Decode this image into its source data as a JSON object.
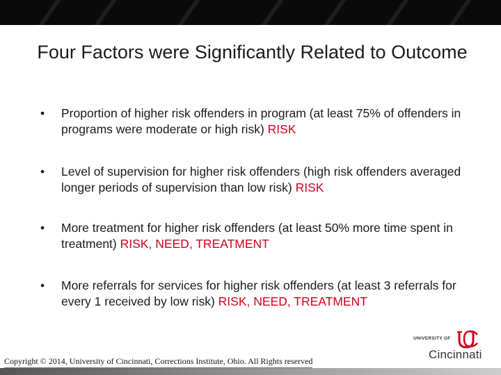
{
  "slide": {
    "title": "Four Factors were Significantly Related to Outcome",
    "bullets": [
      {
        "text": "Proportion of higher risk offenders in program (at least 75% of offenders in programs were moderate or high risk)",
        "tag": "RISK"
      },
      {
        "text": "Level of supervision for higher risk offenders (high risk offenders averaged longer periods of supervision than low risk)",
        "tag": "RISK"
      },
      {
        "text": "More treatment for higher risk offenders (at least 50% more time spent in treatment)",
        "tag": "RISK, NEED, TREATMENT"
      },
      {
        "text": "More referrals for services for higher risk offenders (at least 3 referrals for every 1 received by low risk)",
        "tag": "RISK, NEED, TREATMENT"
      }
    ],
    "bullet_symbol": "•",
    "copyright": "Copyright © 2014, University of Cincinnati, Corrections Institute, Ohio. All Rights reserved",
    "logo": {
      "university_of": "UNIVERSITY OF",
      "name": "Cincinnati",
      "icon": "uc-monogram-icon",
      "color": "#d0021b"
    },
    "colors": {
      "accent": "#d0021b",
      "text": "#1a1a1a",
      "banner": "#0a0a0a"
    }
  }
}
